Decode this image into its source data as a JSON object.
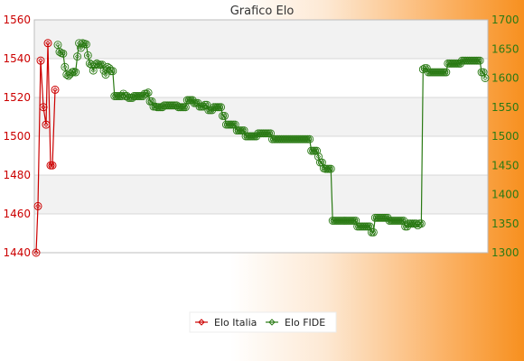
{
  "chart_data": {
    "type": "line",
    "title": "Grafico Elo",
    "xlabel": "",
    "y_left": {
      "ylim": [
        1440,
        1560
      ],
      "ticks": [
        1440,
        1460,
        1480,
        1500,
        1520,
        1540,
        1560
      ],
      "color": "#cc0000"
    },
    "y_right": {
      "ylim": [
        1300,
        1700
      ],
      "ticks": [
        1300,
        1350,
        1400,
        1450,
        1500,
        1550,
        1600,
        1650,
        1700
      ],
      "color": "#2a7a14"
    },
    "grid": true,
    "legend_position": "bottom",
    "series": [
      {
        "name": "Elo Italia",
        "axis": "left",
        "color": "#cc0000",
        "values": [
          1440,
          1464,
          1539,
          1515,
          1506,
          1548,
          1485,
          1485,
          1524
        ]
      },
      {
        "name": "Elo FIDE",
        "axis": "right",
        "color": "#2a7a14",
        "values": [
          1657,
          1645,
          1643,
          1642,
          1619,
          1606,
          1604,
          1607,
          1610,
          1611,
          1610,
          1637,
          1660,
          1652,
          1660,
          1659,
          1658,
          1639,
          1625,
          1623,
          1613,
          1623,
          1625,
          1623,
          1623,
          1623,
          1613,
          1606,
          1619,
          1617,
          1612,
          1612,
          1569,
          1569,
          1569,
          1569,
          1569,
          1573,
          1569,
          1569,
          1566,
          1566,
          1566,
          1569,
          1569,
          1569,
          1569,
          1569,
          1569,
          1573,
          1573,
          1575,
          1560,
          1560,
          1551,
          1551,
          1550,
          1550,
          1550,
          1550,
          1553,
          1553,
          1553,
          1553,
          1553,
          1553,
          1553,
          1553,
          1550,
          1550,
          1550,
          1550,
          1550,
          1562,
          1562,
          1562,
          1562,
          1557,
          1557,
          1557,
          1551,
          1551,
          1551,
          1554,
          1554,
          1545,
          1545,
          1545,
          1550,
          1550,
          1550,
          1550,
          1550,
          1535,
          1535,
          1520,
          1520,
          1520,
          1520,
          1520,
          1520,
          1510,
          1510,
          1510,
          1510,
          1510,
          1500,
          1500,
          1500,
          1500,
          1500,
          1500,
          1500,
          1505,
          1505,
          1505,
          1505,
          1505,
          1505,
          1505,
          1505,
          1495,
          1495,
          1495,
          1495,
          1495,
          1495,
          1495,
          1495,
          1495,
          1495,
          1495,
          1495,
          1495,
          1495,
          1495,
          1495,
          1495,
          1495,
          1495,
          1495,
          1495,
          1495,
          1475,
          1475,
          1475,
          1475,
          1465,
          1455,
          1455,
          1445,
          1444,
          1444,
          1444,
          1444,
          1355,
          1355,
          1355,
          1355,
          1355,
          1355,
          1355,
          1355,
          1355,
          1355,
          1355,
          1355,
          1355,
          1355,
          1345,
          1345,
          1345,
          1345,
          1345,
          1345,
          1345,
          1345,
          1335,
          1335,
          1360,
          1360,
          1360,
          1360,
          1360,
          1360,
          1360,
          1360,
          1355,
          1355,
          1355,
          1355,
          1355,
          1355,
          1355,
          1355,
          1355,
          1345,
          1345,
          1350,
          1350,
          1350,
          1350,
          1350,
          1347,
          1350,
          1350,
          1615,
          1617,
          1617,
          1610,
          1610,
          1610,
          1610,
          1610,
          1610,
          1610,
          1610,
          1610,
          1610,
          1610,
          1625,
          1625,
          1625,
          1625,
          1625,
          1625,
          1625,
          1625,
          1630,
          1630,
          1630,
          1630,
          1630,
          1630,
          1630,
          1630,
          1630,
          1630,
          1630,
          1610,
          1610,
          1600
        ]
      }
    ],
    "legend": [
      {
        "name": "Elo Italia",
        "color": "#cc0000",
        "marker": "diamond"
      },
      {
        "name": "Elo FIDE",
        "color": "#2a7a14",
        "marker": "diamond"
      }
    ]
  }
}
